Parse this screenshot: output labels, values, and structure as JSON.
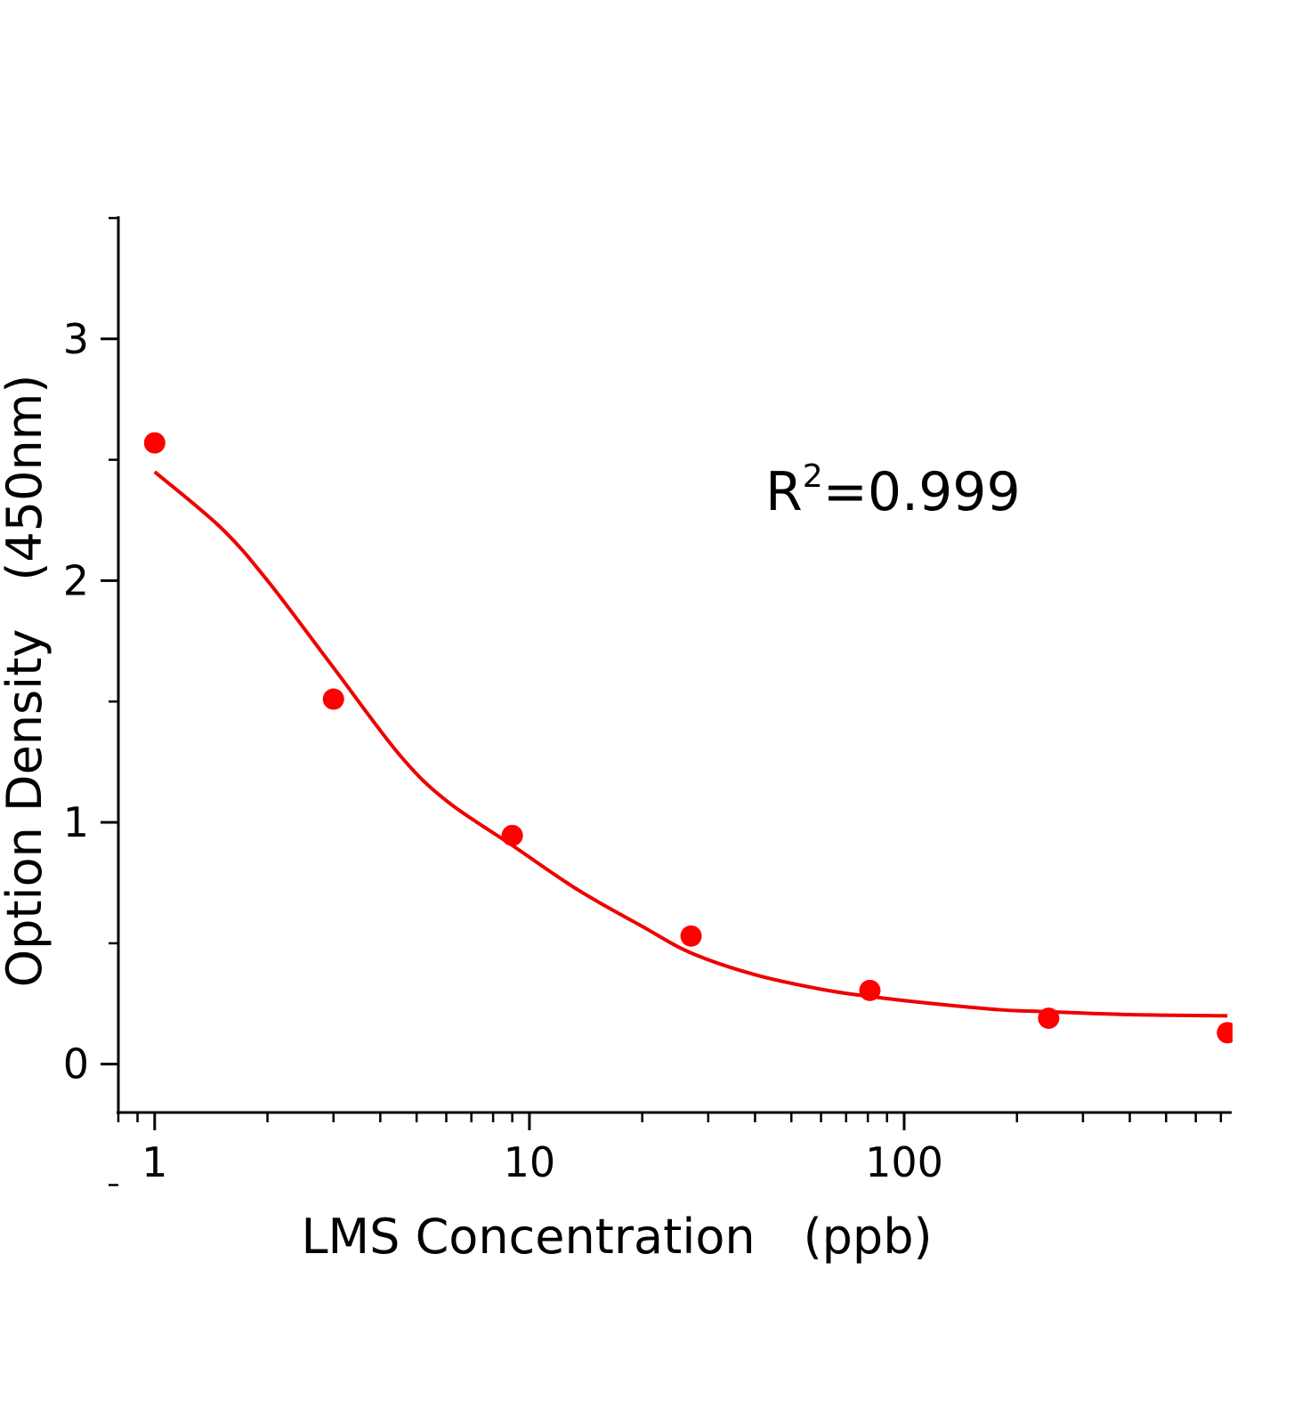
{
  "chart_data": {
    "type": "scatter",
    "title": "",
    "xlabel": "LMS Concentration　(ppb)",
    "ylabel": "Option Density　(450nm)",
    "xscale": "log",
    "xlim": [
      0.8,
      740
    ],
    "ylim": [
      -0.2,
      3.5
    ],
    "x_ticks": [
      {
        "value": 1,
        "label": "1"
      },
      {
        "value": 10,
        "label": "10"
      },
      {
        "value": 100,
        "label": "100"
      }
    ],
    "y_ticks": [
      {
        "value": 0,
        "label": "0"
      },
      {
        "value": 1,
        "label": "1"
      },
      {
        "value": 2,
        "label": "2"
      },
      {
        "value": 3,
        "label": "3"
      }
    ],
    "grid": false,
    "color": "#ff0000",
    "points": {
      "x": [
        1,
        3,
        9,
        27,
        81,
        243,
        729
      ],
      "y": [
        2.57,
        1.51,
        0.946,
        0.53,
        0.305,
        0.19,
        0.13
      ]
    },
    "fit_curve": {
      "x": [
        1,
        1.5,
        2,
        3,
        4.5,
        6,
        9,
        13.5,
        20,
        27,
        40,
        60,
        81,
        120,
        180,
        243,
        400,
        729
      ],
      "y": [
        2.45,
        2.22,
        2.0,
        1.64,
        1.28,
        1.09,
        0.905,
        0.72,
        0.57,
        0.46,
        0.37,
        0.31,
        0.28,
        0.25,
        0.225,
        0.217,
        0.205,
        0.2
      ]
    },
    "annotation": {
      "text": "R",
      "sup": "2",
      "rest": "=0.999"
    }
  }
}
